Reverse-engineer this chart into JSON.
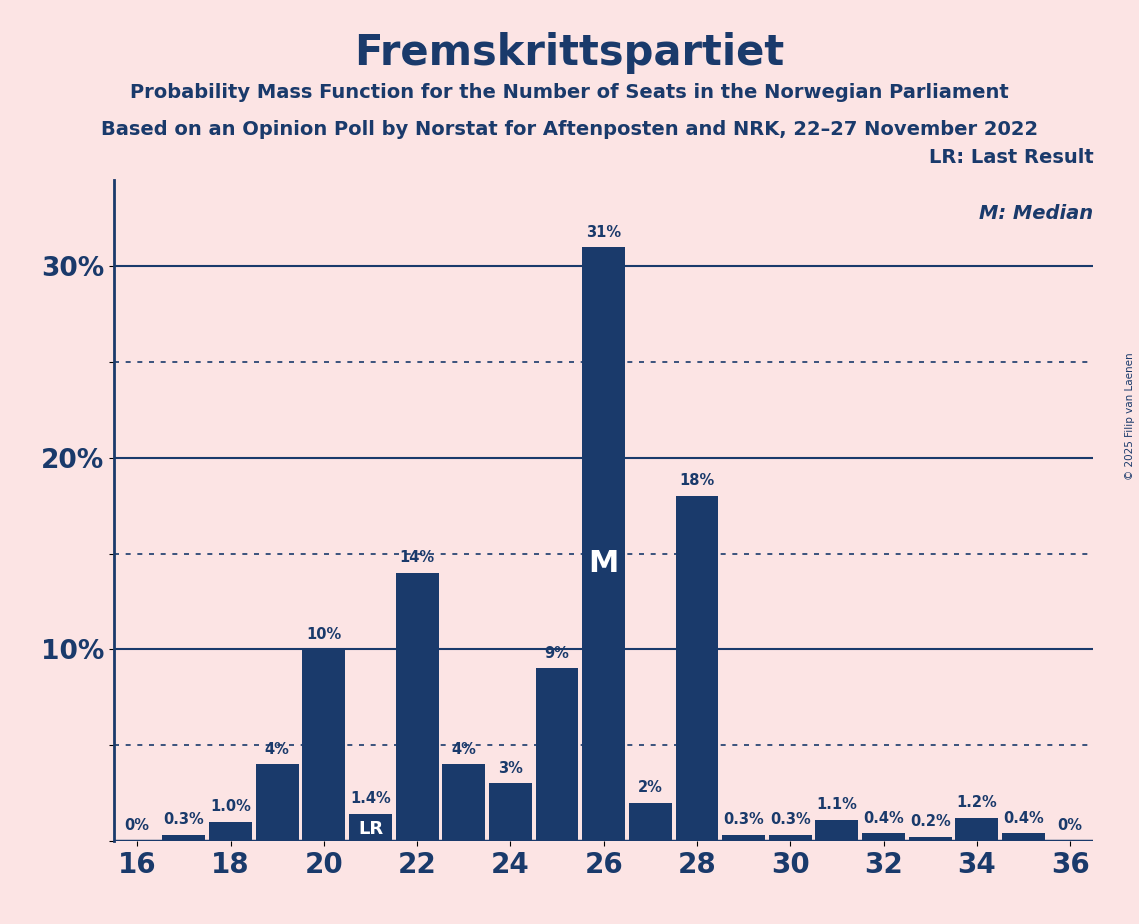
{
  "title": "Fremskrittspartiet",
  "subtitle1": "Probability Mass Function for the Number of Seats in the Norwegian Parliament",
  "subtitle2": "Based on an Opinion Poll by Norstat for Aftenposten and NRK, 22–27 November 2022",
  "copyright": "© 2025 Filip van Laenen",
  "seats": [
    16,
    17,
    18,
    19,
    20,
    21,
    22,
    23,
    24,
    25,
    26,
    27,
    28,
    29,
    30,
    31,
    32,
    33,
    34,
    35,
    36
  ],
  "probabilities": [
    0.0,
    0.003,
    0.01,
    0.04,
    0.1,
    0.014,
    0.14,
    0.04,
    0.03,
    0.09,
    0.31,
    0.02,
    0.18,
    0.003,
    0.003,
    0.011,
    0.004,
    0.002,
    0.012,
    0.004,
    0.0
  ],
  "labels": [
    "0%",
    "0.3%",
    "1.0%",
    "4%",
    "10%",
    "1.4%",
    "14%",
    "4%",
    "3%",
    "9%",
    "31%",
    "2%",
    "18%",
    "0.3%",
    "0.3%",
    "1.1%",
    "0.4%",
    "0.2%",
    "1.2%",
    "0.4%",
    "0%"
  ],
  "last_result_seat": 21,
  "median_seat": 26,
  "bar_color": "#1a3a6b",
  "bg_color": "#fce4e4",
  "text_color": "#1a3a6b",
  "ylim_max": 0.345,
  "legend_lr": "LR: Last Result",
  "legend_m": "M: Median"
}
